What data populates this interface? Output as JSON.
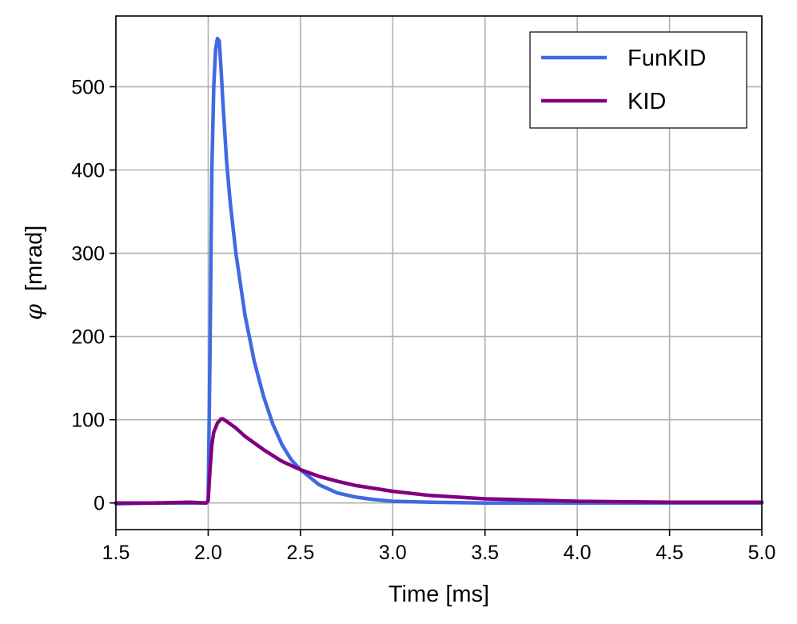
{
  "chart_data": {
    "type": "line",
    "title": "",
    "xlabel": "Time [ms]",
    "ylabel_symbol": "φ",
    "ylabel_unit": "[mrad]",
    "xlim": [
      1.5,
      5.0
    ],
    "ylim": [
      -32,
      585
    ],
    "xticks": [
      1.5,
      2.0,
      2.5,
      3.0,
      3.5,
      4.0,
      4.5,
      5.0
    ],
    "xtick_labels": [
      "1.5",
      "2.0",
      "2.5",
      "3.0",
      "3.5",
      "4.0",
      "4.5",
      "5.0"
    ],
    "yticks": [
      0,
      100,
      200,
      300,
      400,
      500
    ],
    "ytick_labels": [
      "0",
      "100",
      "200",
      "300",
      "400",
      "500"
    ],
    "grid": true,
    "legend_position": "top-right",
    "series": [
      {
        "name": "FunKID",
        "color": "#4169E1",
        "x": [
          1.5,
          1.7,
          1.9,
          1.99,
          2.0,
          2.01,
          2.02,
          2.03,
          2.04,
          2.05,
          2.06,
          2.07,
          2.08,
          2.09,
          2.1,
          2.12,
          2.15,
          2.2,
          2.25,
          2.3,
          2.35,
          2.4,
          2.45,
          2.5,
          2.6,
          2.7,
          2.8,
          2.9,
          3.0,
          3.2,
          3.5,
          4.0,
          4.5,
          5.0
        ],
        "values": [
          -1,
          0,
          0,
          0,
          3,
          180,
          400,
          500,
          545,
          558,
          555,
          520,
          480,
          445,
          410,
          360,
          300,
          225,
          170,
          128,
          95,
          70,
          52,
          40,
          22,
          12,
          7,
          4,
          2,
          1,
          0,
          0,
          0,
          0
        ]
      },
      {
        "name": "KID",
        "color": "#800080",
        "x": [
          1.5,
          1.7,
          1.9,
          1.99,
          2.0,
          2.01,
          2.02,
          2.03,
          2.05,
          2.07,
          2.08,
          2.1,
          2.15,
          2.2,
          2.3,
          2.4,
          2.5,
          2.6,
          2.7,
          2.8,
          3.0,
          3.2,
          3.5,
          4.0,
          4.5,
          5.0
        ],
        "values": [
          0,
          0,
          1,
          0,
          3,
          40,
          70,
          85,
          96,
          101,
          101,
          98,
          90,
          80,
          64,
          50,
          40,
          32,
          26,
          21,
          14,
          9,
          5,
          2,
          1,
          1
        ]
      }
    ]
  }
}
